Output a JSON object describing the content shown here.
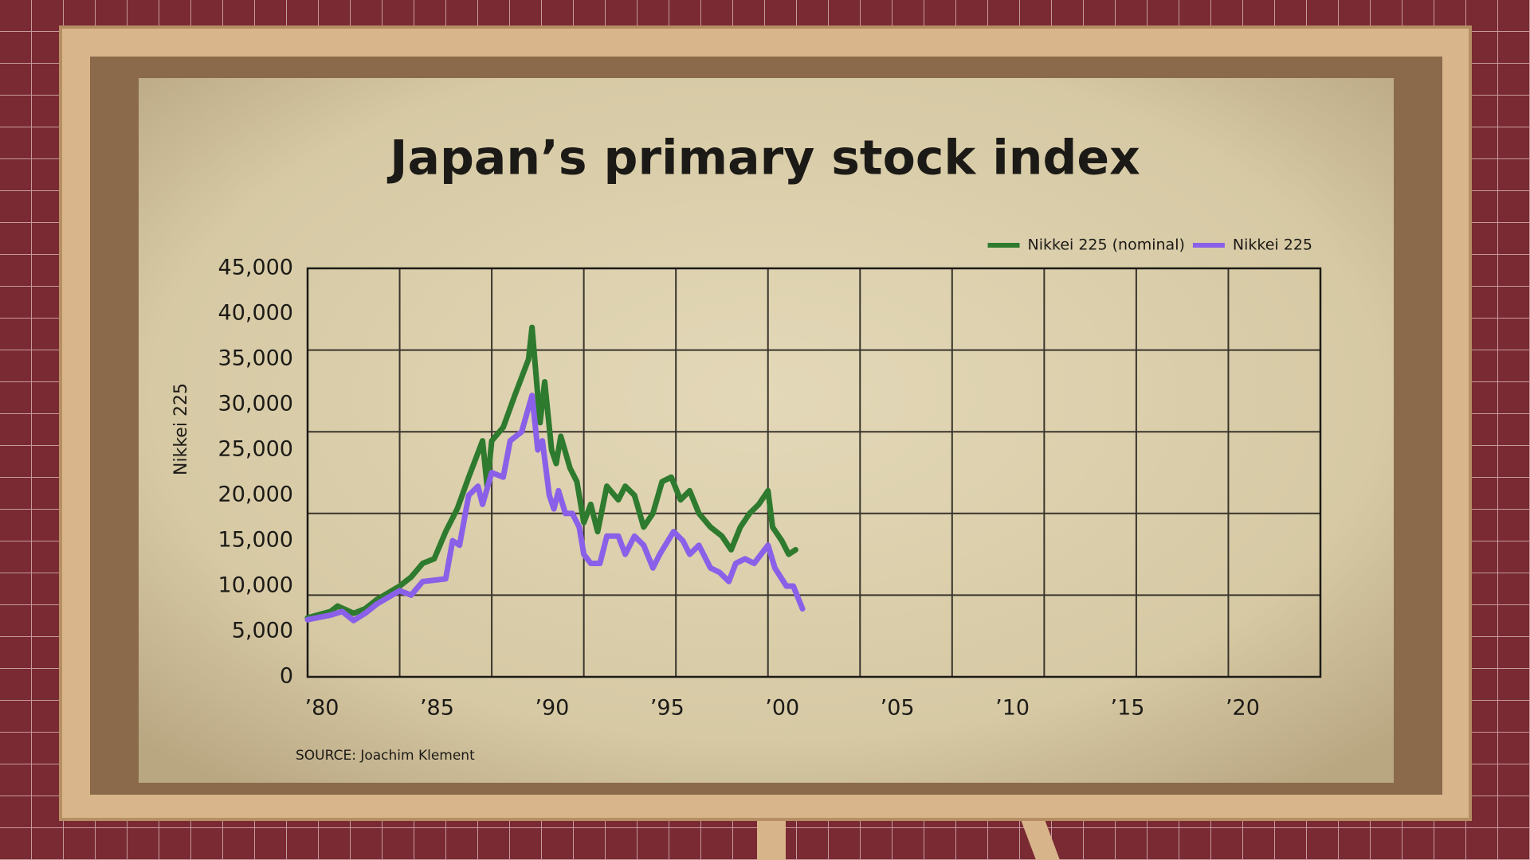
{
  "chart_data": {
    "type": "line",
    "title": "Japan’s primary stock index",
    "y_label": "Nikkei 225",
    "source": "SOURCE: Joachim Klement",
    "xlim": [
      1980,
      2024
    ],
    "xticks": [
      {
        "value": 1980,
        "label": "’80"
      },
      {
        "value": 1985,
        "label": "’85"
      },
      {
        "value": 1990,
        "label": "’90"
      },
      {
        "value": 1995,
        "label": "’95"
      },
      {
        "value": 2000,
        "label": "’00"
      },
      {
        "value": 2005,
        "label": "’05"
      },
      {
        "value": 2010,
        "label": "’10"
      },
      {
        "value": 2015,
        "label": "’15"
      },
      {
        "value": 2020,
        "label": "’20"
      }
    ],
    "x_gridlines": [
      1984,
      1988,
      1992,
      1996,
      2000,
      2004,
      2008,
      2012,
      2016,
      2020
    ],
    "ylim": [
      0,
      45000
    ],
    "yticks": [
      {
        "value": 0,
        "label": "0"
      },
      {
        "value": 5000,
        "label": "5,000"
      },
      {
        "value": 10000,
        "label": "10,000"
      },
      {
        "value": 15000,
        "label": "15,000"
      },
      {
        "value": 20000,
        "label": "20,000"
      },
      {
        "value": 25000,
        "label": "25,000"
      },
      {
        "value": 30000,
        "label": "30,000"
      },
      {
        "value": 35000,
        "label": "35,000"
      },
      {
        "value": 40000,
        "label": "40,000"
      },
      {
        "value": 45000,
        "label": "45,000"
      }
    ],
    "y_gridlines": [
      9000,
      18000,
      27000,
      36000
    ],
    "grid": true,
    "legend": "top-right",
    "series": [
      {
        "name": "Nikkei 225 (nominal)",
        "color": "#2e7a2e",
        "x": [
          1980,
          1981,
          1981.3,
          1982,
          1982.5,
          1983,
          1984,
          1984.5,
          1985,
          1985.5,
          1986,
          1986.5,
          1987,
          1987.6,
          1987.8,
          1988,
          1988.5,
          1989,
          1989.6,
          1989.75,
          1990.1,
          1990.3,
          1990.6,
          1990.8,
          1991,
          1991.4,
          1991.7,
          1992,
          1992.3,
          1992.6,
          1993,
          1993.5,
          1993.8,
          1994.2,
          1994.6,
          1995,
          1995.4,
          1995.8,
          1996.2,
          1996.6,
          1997,
          1997.5,
          1998,
          1998.4,
          1998.8,
          1999.2,
          1999.6,
          2000,
          2000.2,
          2000.6,
          2000.9,
          2001.2
        ],
        "values": [
          6500,
          7200,
          7800,
          7000,
          7500,
          8500,
          10000,
          11000,
          12500,
          13000,
          16000,
          18500,
          22000,
          26000,
          21000,
          26000,
          27500,
          31000,
          35000,
          38500,
          28000,
          32500,
          25000,
          23500,
          26500,
          23000,
          21500,
          17000,
          19000,
          16000,
          21000,
          19500,
          21000,
          20000,
          16500,
          18000,
          21500,
          22000,
          19500,
          20500,
          18000,
          16500,
          15500,
          14000,
          16500,
          18000,
          19000,
          20500,
          16500,
          15000,
          13500,
          14000
        ]
      },
      {
        "name": "Nikkei 225",
        "color": "#8a60e8",
        "x": [
          1980,
          1981,
          1981.5,
          1982,
          1982.5,
          1983,
          1984,
          1984.5,
          1985,
          1986,
          1986.3,
          1986.6,
          1987,
          1987.4,
          1987.6,
          1988,
          1988.5,
          1988.8,
          1989.3,
          1989.75,
          1990,
          1990.2,
          1990.5,
          1990.7,
          1990.9,
          1991.2,
          1991.5,
          1991.8,
          1992,
          1992.3,
          1992.7,
          1993,
          1993.5,
          1993.8,
          1994.2,
          1994.6,
          1995,
          1995.3,
          1995.9,
          1996.3,
          1996.6,
          1997,
          1997.5,
          1997.9,
          1998.3,
          1998.6,
          1999,
          1999.4,
          2000,
          2000.3,
          2000.8,
          2001.1,
          2001.5
        ],
        "values": [
          6300,
          6800,
          7200,
          6200,
          7000,
          8000,
          9500,
          9000,
          10500,
          10800,
          15000,
          14500,
          20000,
          21000,
          19000,
          22500,
          22000,
          26000,
          27000,
          31000,
          25000,
          26000,
          20000,
          18500,
          20500,
          18000,
          18000,
          16500,
          13500,
          12500,
          12500,
          15500,
          15500,
          13500,
          15500,
          14500,
          12000,
          13500,
          16000,
          15000,
          13500,
          14500,
          12000,
          11500,
          10500,
          12500,
          13000,
          12500,
          14500,
          12000,
          10000,
          10000,
          7500
        ]
      }
    ]
  }
}
